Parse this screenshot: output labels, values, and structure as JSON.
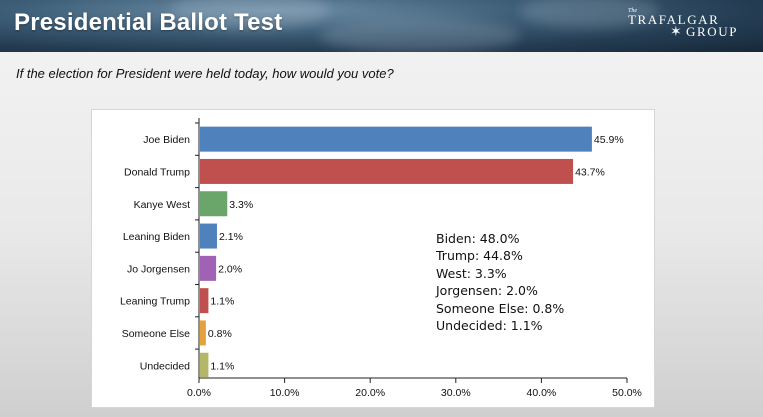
{
  "header": {
    "title": "Presidential Ballot Test",
    "logo_the": "The",
    "logo_line1": "TRAFALGAR",
    "logo_line2": "GROUP"
  },
  "question": "If the election for President were held today, how would you vote?",
  "summary": [
    "Biden: 48.0%",
    "Trump: 44.8%",
    "West: 3.3%",
    "Jorgensen: 2.0%",
    "Someone Else: 0.8%",
    "Undecided: 1.1%"
  ],
  "chart_data": {
    "type": "bar",
    "orientation": "horizontal",
    "categories": [
      "Joe Biden",
      "Donald Trump",
      "Kanye West",
      "Leaning Biden",
      "Jo Jorgensen",
      "Leaning Trump",
      "Someone Else",
      "Undecided"
    ],
    "values": [
      45.9,
      43.7,
      3.3,
      2.1,
      2.0,
      1.1,
      0.8,
      1.1
    ],
    "value_labels": [
      "45.9%",
      "43.7%",
      "3.3%",
      "2.1%",
      "2.0%",
      "1.1%",
      "0.8%",
      "1.1%"
    ],
    "colors": [
      "#4f81bd",
      "#c0504d",
      "#6aa56a",
      "#4f81bd",
      "#a162b5",
      "#c0504d",
      "#e5a13b",
      "#b5b66a"
    ],
    "xlim": [
      0,
      50
    ],
    "xticks": [
      0,
      10,
      20,
      30,
      40,
      50
    ],
    "xtick_labels": [
      "0.0%",
      "10.0%",
      "20.0%",
      "30.0%",
      "40.0%",
      "50.0%"
    ],
    "title": "",
    "xlabel": "",
    "ylabel": "",
    "grid": false
  }
}
